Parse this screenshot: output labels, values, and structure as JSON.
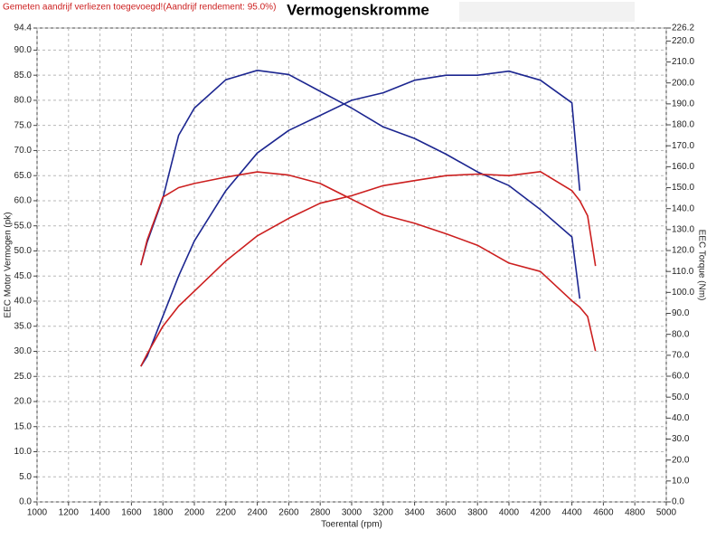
{
  "chart_data": {
    "type": "line",
    "title": "Vermogenskromme",
    "subtitle": "Gemeten aandrijf verliezen toegevoegd!(Aandrijf rendement: 95.0%)",
    "x_label": "Toerental (rpm)",
    "y_label": "EEC Motor Vermogen (pk)",
    "y2_label": "EEC Torque (Nm)",
    "x": [
      1660,
      1700,
      1800,
      1900,
      2000,
      2200,
      2400,
      2600,
      2800,
      3000,
      3200,
      3400,
      3600,
      3800,
      4000,
      4200,
      4400,
      4450,
      4500,
      4550
    ],
    "series": [
      {
        "color": "#1c2690",
        "axis": "y",
        "values": [
          27,
          29,
          37,
          45,
          52,
          62,
          69.5,
          74,
          77,
          80,
          81.5,
          84,
          85,
          85,
          85.8,
          84,
          79.5,
          62,
          null,
          null
        ]
      },
      {
        "color": "#1c2690",
        "axis": "y2",
        "values": [
          113,
          124,
          145,
          175,
          188,
          201.5,
          206,
          204,
          196,
          188,
          179,
          173.5,
          166,
          157.5,
          151,
          139.5,
          126.5,
          97,
          null,
          null
        ]
      },
      {
        "color": "#cc1f1f",
        "axis": "y",
        "values": [
          27,
          29.5,
          35,
          39,
          42,
          48,
          53,
          56.5,
          59.5,
          61,
          63,
          64,
          65,
          65.3,
          65,
          65.8,
          62,
          60,
          57,
          47
        ]
      },
      {
        "color": "#cc1f1f",
        "axis": "y2",
        "values": [
          113,
          125,
          145.5,
          150,
          152,
          155,
          157.5,
          156,
          152,
          144.5,
          137,
          133,
          128,
          122.5,
          114,
          110,
          96,
          93,
          88.5,
          72
        ]
      }
    ],
    "xlim": [
      1000,
      5000
    ],
    "xticks": [
      1000,
      1200,
      1400,
      1600,
      1800,
      2000,
      2200,
      2400,
      2600,
      2800,
      3000,
      3200,
      3400,
      3600,
      3800,
      4000,
      4200,
      4400,
      4600,
      4800,
      5000
    ],
    "ylim": [
      0,
      94.4
    ],
    "yticks": [
      {
        "value": 0,
        "label": "0.0"
      },
      {
        "value": 5,
        "label": "5.0"
      },
      {
        "value": 10,
        "label": "10.0"
      },
      {
        "value": 15,
        "label": "15.0"
      },
      {
        "value": 20,
        "label": "20.0"
      },
      {
        "value": 25,
        "label": "25.0"
      },
      {
        "value": 30,
        "label": "30.0"
      },
      {
        "value": 35,
        "label": "35.0"
      },
      {
        "value": 40,
        "label": "40.0"
      },
      {
        "value": 45,
        "label": "45.0"
      },
      {
        "value": 50,
        "label": "50.0"
      },
      {
        "value": 55,
        "label": "55.0"
      },
      {
        "value": 60,
        "label": "60.0"
      },
      {
        "value": 65,
        "label": "65.0"
      },
      {
        "value": 70,
        "label": "70.0"
      },
      {
        "value": 75,
        "label": "75.0"
      },
      {
        "value": 80,
        "label": "80.0"
      },
      {
        "value": 85,
        "label": "85.0"
      },
      {
        "value": 90,
        "label": "90.0"
      },
      94.4
    ],
    "y2lim": [
      0,
      226.2
    ],
    "y2ticks": [
      {
        "value": 0,
        "label": "0.0"
      },
      {
        "value": 10,
        "label": "10.0"
      },
      {
        "value": 20,
        "label": "20.0"
      },
      {
        "value": 30,
        "label": "30.0"
      },
      {
        "value": 40,
        "label": "40.0"
      },
      {
        "value": 50,
        "label": "50.0"
      },
      {
        "value": 60,
        "label": "60.0"
      },
      {
        "value": 70,
        "label": "70.0"
      },
      {
        "value": 80,
        "label": "80.0"
      },
      {
        "value": 90,
        "label": "90.0"
      },
      {
        "value": 100,
        "label": "100.0"
      },
      {
        "value": 110,
        "label": "110.0"
      },
      {
        "value": 120,
        "label": "120.0"
      },
      {
        "value": 130,
        "label": "130.0"
      },
      {
        "value": 140,
        "label": "140.0"
      },
      {
        "value": 150,
        "label": "150.0"
      },
      {
        "value": 160,
        "label": "160.0"
      },
      {
        "value": 170,
        "label": "170.0"
      },
      {
        "value": 180,
        "label": "180.0"
      },
      {
        "value": 190,
        "label": "190.0"
      },
      {
        "value": 200,
        "label": "200.0"
      },
      {
        "value": 210,
        "label": "210.0"
      },
      {
        "value": 220,
        "label": "220.0"
      },
      226.2
    ],
    "grid": true
  }
}
